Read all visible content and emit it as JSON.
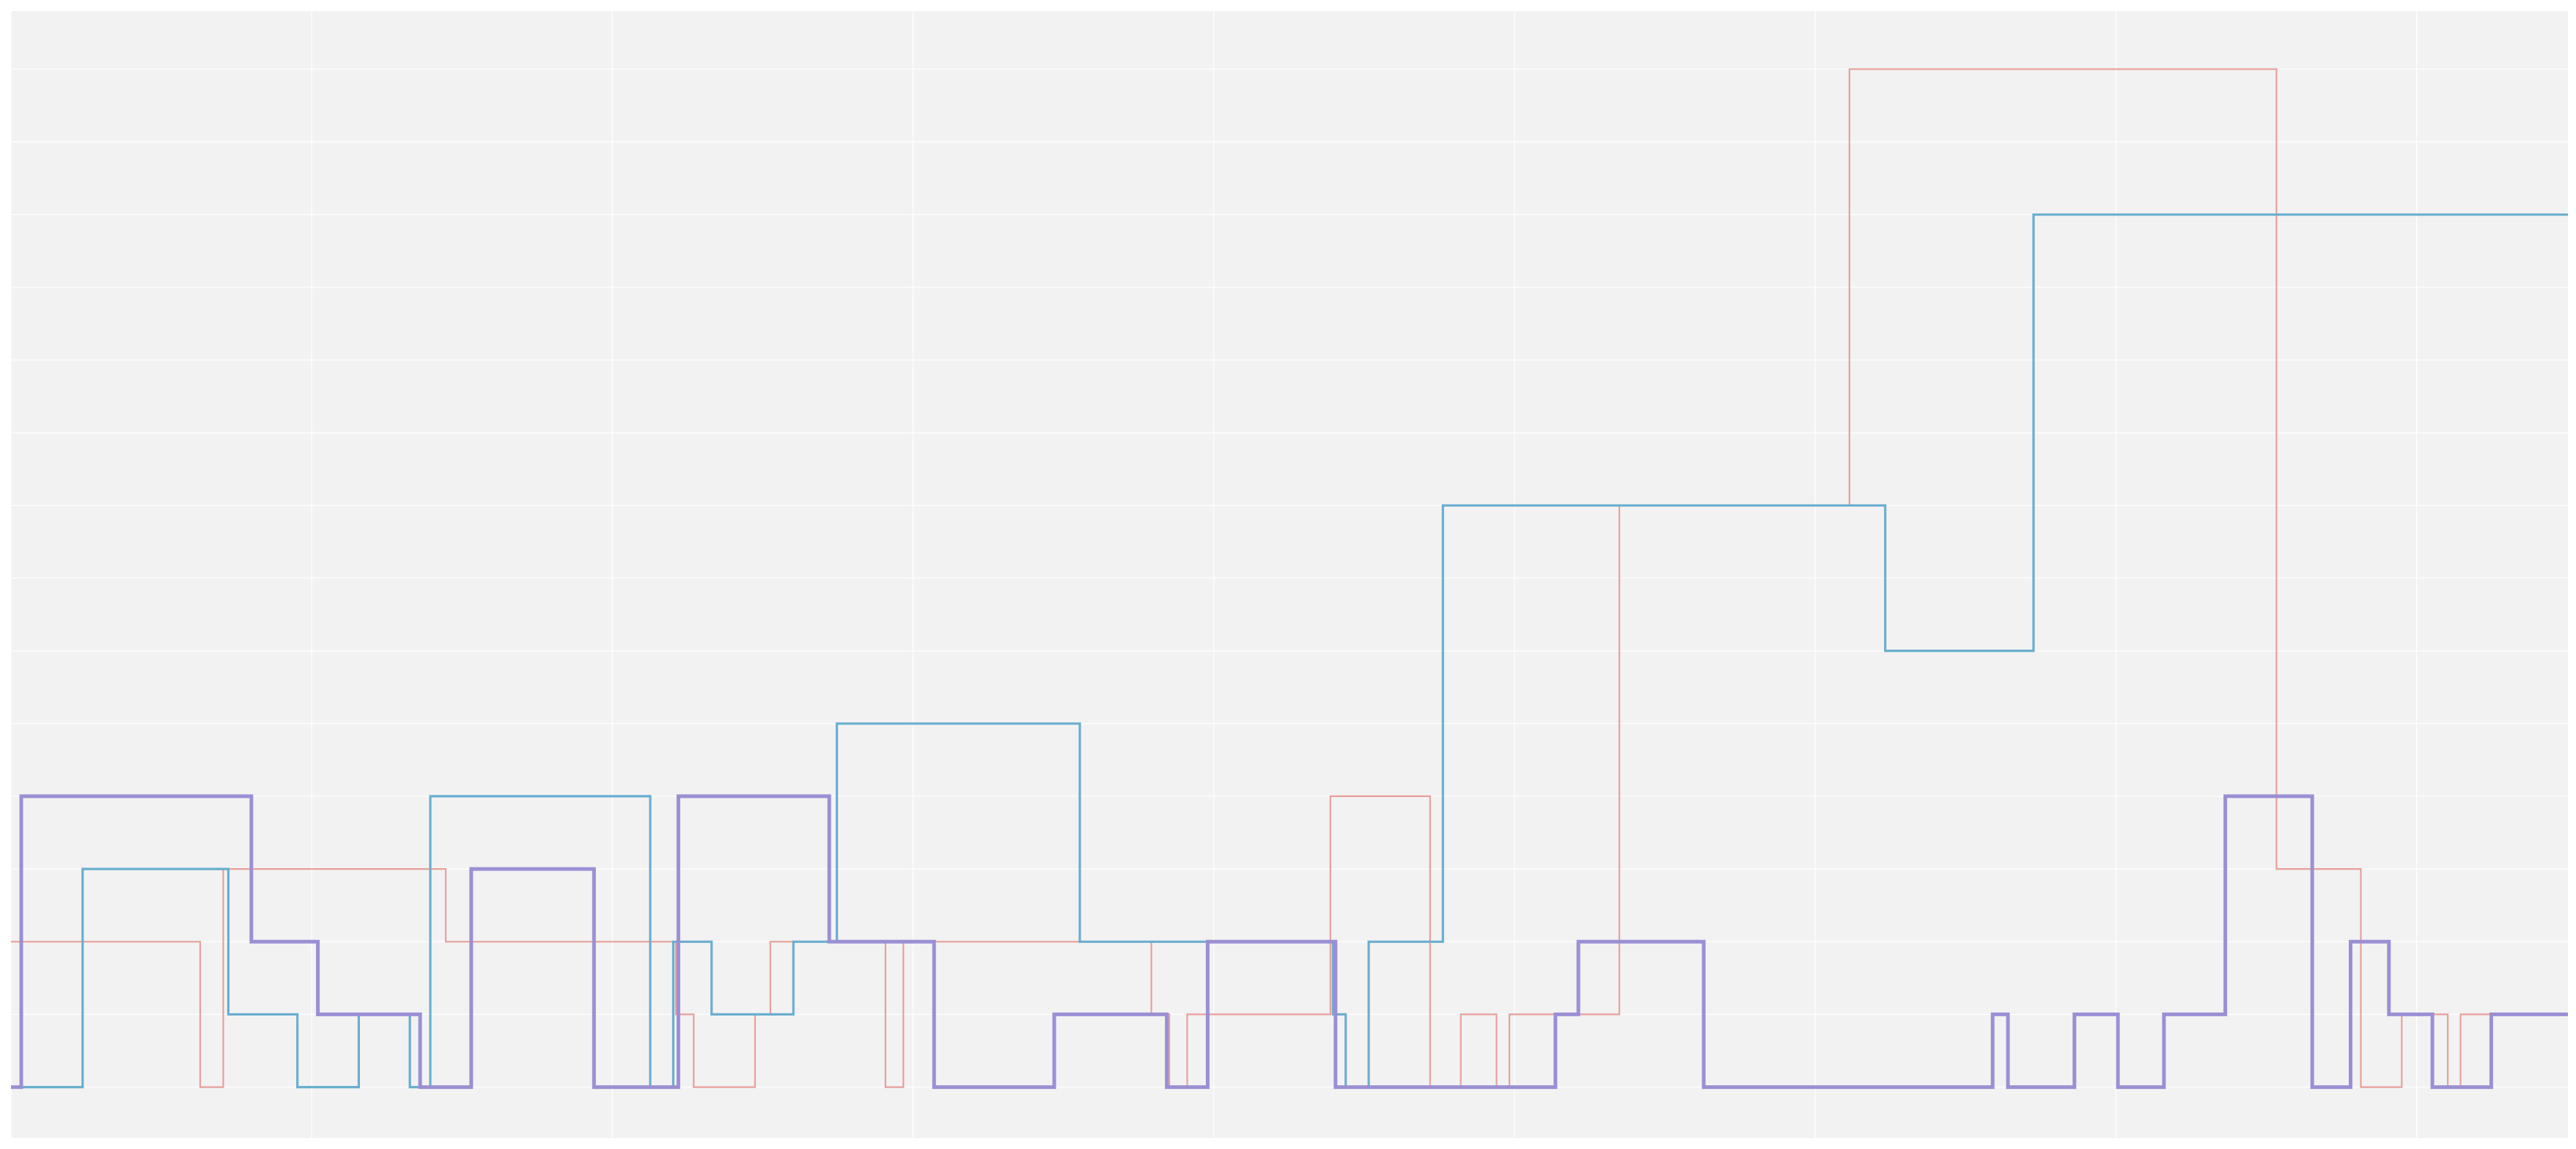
{
  "chart_data": {
    "type": "line",
    "step": "post",
    "title": "",
    "xlabel": "",
    "ylabel": "",
    "x_tick_labels": [],
    "y_tick_labels": [],
    "xlim": [
      0,
      1000
    ],
    "ylim": [
      -0.35,
      7.4
    ],
    "grid": true,
    "legend": "none",
    "background": "#f2f2f2",
    "gridline_color": "#ffffff",
    "series": [
      {
        "color": "#e8a09a",
        "points": [
          [
            0,
            1
          ],
          [
            74,
            1
          ],
          [
            74,
            0
          ],
          [
            83,
            0
          ],
          [
            83,
            1.5
          ],
          [
            170,
            1.5
          ],
          [
            170,
            1
          ],
          [
            260,
            1
          ],
          [
            260,
            0.5
          ],
          [
            267,
            0.5
          ],
          [
            267,
            0
          ],
          [
            291,
            0
          ],
          [
            291,
            0.5
          ],
          [
            297,
            0.5
          ],
          [
            297,
            1
          ],
          [
            342,
            1
          ],
          [
            342,
            0
          ],
          [
            349,
            0
          ],
          [
            349,
            1
          ],
          [
            446,
            1
          ],
          [
            446,
            0.5
          ],
          [
            453,
            0.5
          ],
          [
            453,
            0
          ],
          [
            460,
            0
          ],
          [
            460,
            0.5
          ],
          [
            516,
            0.5
          ],
          [
            516,
            2
          ],
          [
            555,
            2
          ],
          [
            555,
            0
          ],
          [
            567,
            0
          ],
          [
            567,
            0.5
          ],
          [
            581,
            0.5
          ],
          [
            581,
            0
          ],
          [
            586,
            0
          ],
          [
            586,
            0.5
          ],
          [
            629,
            0.5
          ],
          [
            629,
            4
          ],
          [
            719,
            4
          ],
          [
            719,
            7
          ],
          [
            886,
            7
          ],
          [
            886,
            1.5
          ],
          [
            919,
            1.5
          ],
          [
            919,
            0
          ],
          [
            935,
            0
          ],
          [
            935,
            0.5
          ],
          [
            953,
            0.5
          ],
          [
            953,
            0
          ],
          [
            958,
            0
          ],
          [
            958,
            0.5
          ],
          [
            1000,
            0.5
          ]
        ]
      },
      {
        "color": "#6aaed0",
        "points": [
          [
            0,
            0
          ],
          [
            28,
            0
          ],
          [
            28,
            1.5
          ],
          [
            85,
            1.5
          ],
          [
            85,
            0.5
          ],
          [
            112,
            0.5
          ],
          [
            112,
            0
          ],
          [
            136,
            0
          ],
          [
            136,
            0.5
          ],
          [
            156,
            0.5
          ],
          [
            156,
            0
          ],
          [
            164,
            0
          ],
          [
            164,
            2
          ],
          [
            250,
            2
          ],
          [
            250,
            0
          ],
          [
            259,
            0
          ],
          [
            259,
            1
          ],
          [
            274,
            1
          ],
          [
            274,
            0.5
          ],
          [
            306,
            0.5
          ],
          [
            306,
            1
          ],
          [
            323,
            1
          ],
          [
            323,
            2.5
          ],
          [
            418,
            2.5
          ],
          [
            418,
            1
          ],
          [
            517,
            1
          ],
          [
            517,
            0.5
          ],
          [
            522,
            0.5
          ],
          [
            522,
            0
          ],
          [
            531,
            0
          ],
          [
            531,
            1
          ],
          [
            560,
            1
          ],
          [
            560,
            4
          ],
          [
            733,
            4
          ],
          [
            733,
            3
          ],
          [
            791,
            3
          ],
          [
            791,
            6
          ],
          [
            1000,
            6
          ]
        ]
      },
      {
        "color": "#9b8fd4",
        "bold": true,
        "points": [
          [
            0,
            0
          ],
          [
            4,
            0
          ],
          [
            4,
            2
          ],
          [
            94,
            2
          ],
          [
            94,
            1
          ],
          [
            120,
            1
          ],
          [
            120,
            0.5
          ],
          [
            160,
            0.5
          ],
          [
            160,
            0
          ],
          [
            180,
            0
          ],
          [
            180,
            1.5
          ],
          [
            228,
            1.5
          ],
          [
            228,
            0
          ],
          [
            261,
            0
          ],
          [
            261,
            2
          ],
          [
            320,
            2
          ],
          [
            320,
            1
          ],
          [
            361,
            1
          ],
          [
            361,
            0
          ],
          [
            408,
            0
          ],
          [
            408,
            0.5
          ],
          [
            452,
            0.5
          ],
          [
            452,
            0
          ],
          [
            468,
            0
          ],
          [
            468,
            1
          ],
          [
            518,
            1
          ],
          [
            518,
            0
          ],
          [
            604,
            0
          ],
          [
            604,
            0.5
          ],
          [
            613,
            0.5
          ],
          [
            613,
            1
          ],
          [
            662,
            1
          ],
          [
            662,
            0
          ],
          [
            775,
            0
          ],
          [
            775,
            0.5
          ],
          [
            781,
            0.5
          ],
          [
            781,
            0
          ],
          [
            807,
            0
          ],
          [
            807,
            0.5
          ],
          [
            824,
            0.5
          ],
          [
            824,
            0
          ],
          [
            842,
            0
          ],
          [
            842,
            0.5
          ],
          [
            866,
            0.5
          ],
          [
            866,
            2
          ],
          [
            900,
            2
          ],
          [
            900,
            0
          ],
          [
            915,
            0
          ],
          [
            915,
            1
          ],
          [
            930,
            1
          ],
          [
            930,
            0.5
          ],
          [
            947,
            0.5
          ],
          [
            947,
            0
          ],
          [
            970,
            0
          ],
          [
            970,
            0.5
          ],
          [
            1000,
            0.5
          ]
        ]
      }
    ]
  }
}
